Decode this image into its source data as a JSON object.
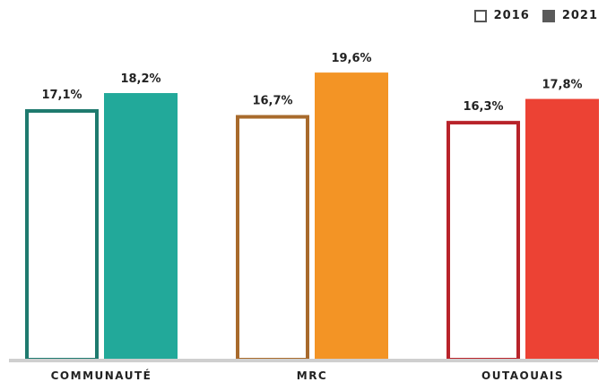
{
  "legend": {
    "label_2016": "2016",
    "label_2021": "2021"
  },
  "chart_data": {
    "type": "bar",
    "categories": [
      "COMMUNAUTÉ",
      "MRC",
      "OUTAOUAIS"
    ],
    "series": [
      {
        "name": "2016",
        "values": [
          17.1,
          16.7,
          16.3
        ],
        "labels": [
          "17,1%",
          "16,7%",
          "16,3%"
        ],
        "style": "outline"
      },
      {
        "name": "2021",
        "values": [
          18.2,
          19.6,
          17.8
        ],
        "labels": [
          "18,2%",
          "19,6%",
          "17,8%"
        ],
        "style": "filled"
      }
    ],
    "colors_2016": [
      "#1e7a6e",
      "#a86a2c",
      "#b8232a"
    ],
    "colors_2021": [
      "#22a99a",
      "#f39425",
      "#ec4234"
    ],
    "ylim": [
      0,
      21.5
    ],
    "grid": false,
    "legend_position": "top-right"
  }
}
